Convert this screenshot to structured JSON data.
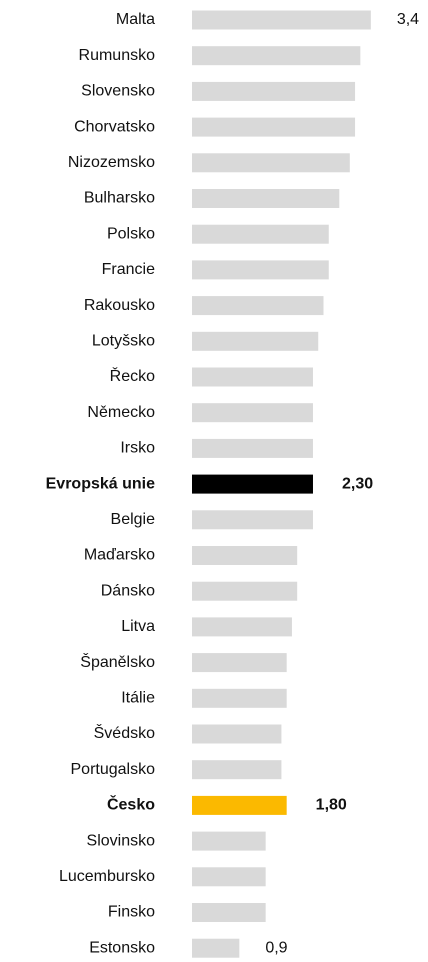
{
  "chart_data": {
    "type": "hbar",
    "categories": [
      "Malta",
      "Rumunsko",
      "Slovensko",
      "Chorvatsko",
      "Nizozemsko",
      "Bulharsko",
      "Polsko",
      "Francie",
      "Rakousko",
      "Lotyšsko",
      "Řecko",
      "Německo",
      "Irsko",
      "Evropská unie",
      "Belgie",
      "Maďarsko",
      "Dánsko",
      "Litva",
      "Španělsko",
      "Itálie",
      "Švédsko",
      "Portugalsko",
      "Česko",
      "Slovinsko",
      "Lucembursko",
      "Finsko",
      "Estonsko"
    ],
    "values": [
      3.4,
      3.2,
      3.1,
      3.1,
      3.0,
      2.8,
      2.6,
      2.6,
      2.5,
      2.4,
      2.3,
      2.3,
      2.3,
      2.3,
      2.3,
      2.0,
      2.0,
      1.9,
      1.8,
      1.8,
      1.7,
      1.7,
      1.8,
      1.4,
      1.4,
      1.4,
      0.9
    ],
    "value_labels": [
      "3,4",
      null,
      null,
      null,
      null,
      null,
      null,
      null,
      null,
      null,
      null,
      null,
      null,
      "2,30",
      null,
      null,
      null,
      null,
      null,
      null,
      null,
      null,
      "1,80",
      null,
      null,
      null,
      "0,9"
    ],
    "color": "#d9d9d9",
    "colors": [
      "#d9d9d9",
      "#d9d9d9",
      "#d9d9d9",
      "#d9d9d9",
      "#d9d9d9",
      "#d9d9d9",
      "#d9d9d9",
      "#d9d9d9",
      "#d9d9d9",
      "#d9d9d9",
      "#d9d9d9",
      "#d9d9d9",
      "#d9d9d9",
      "#000000",
      "#d9d9d9",
      "#d9d9d9",
      "#d9d9d9",
      "#d9d9d9",
      "#d9d9d9",
      "#d9d9d9",
      "#d9d9d9",
      "#d9d9d9",
      "#fbb900",
      "#d9d9d9",
      "#d9d9d9",
      "#d9d9d9",
      "#d9d9d9"
    ]
  }
}
